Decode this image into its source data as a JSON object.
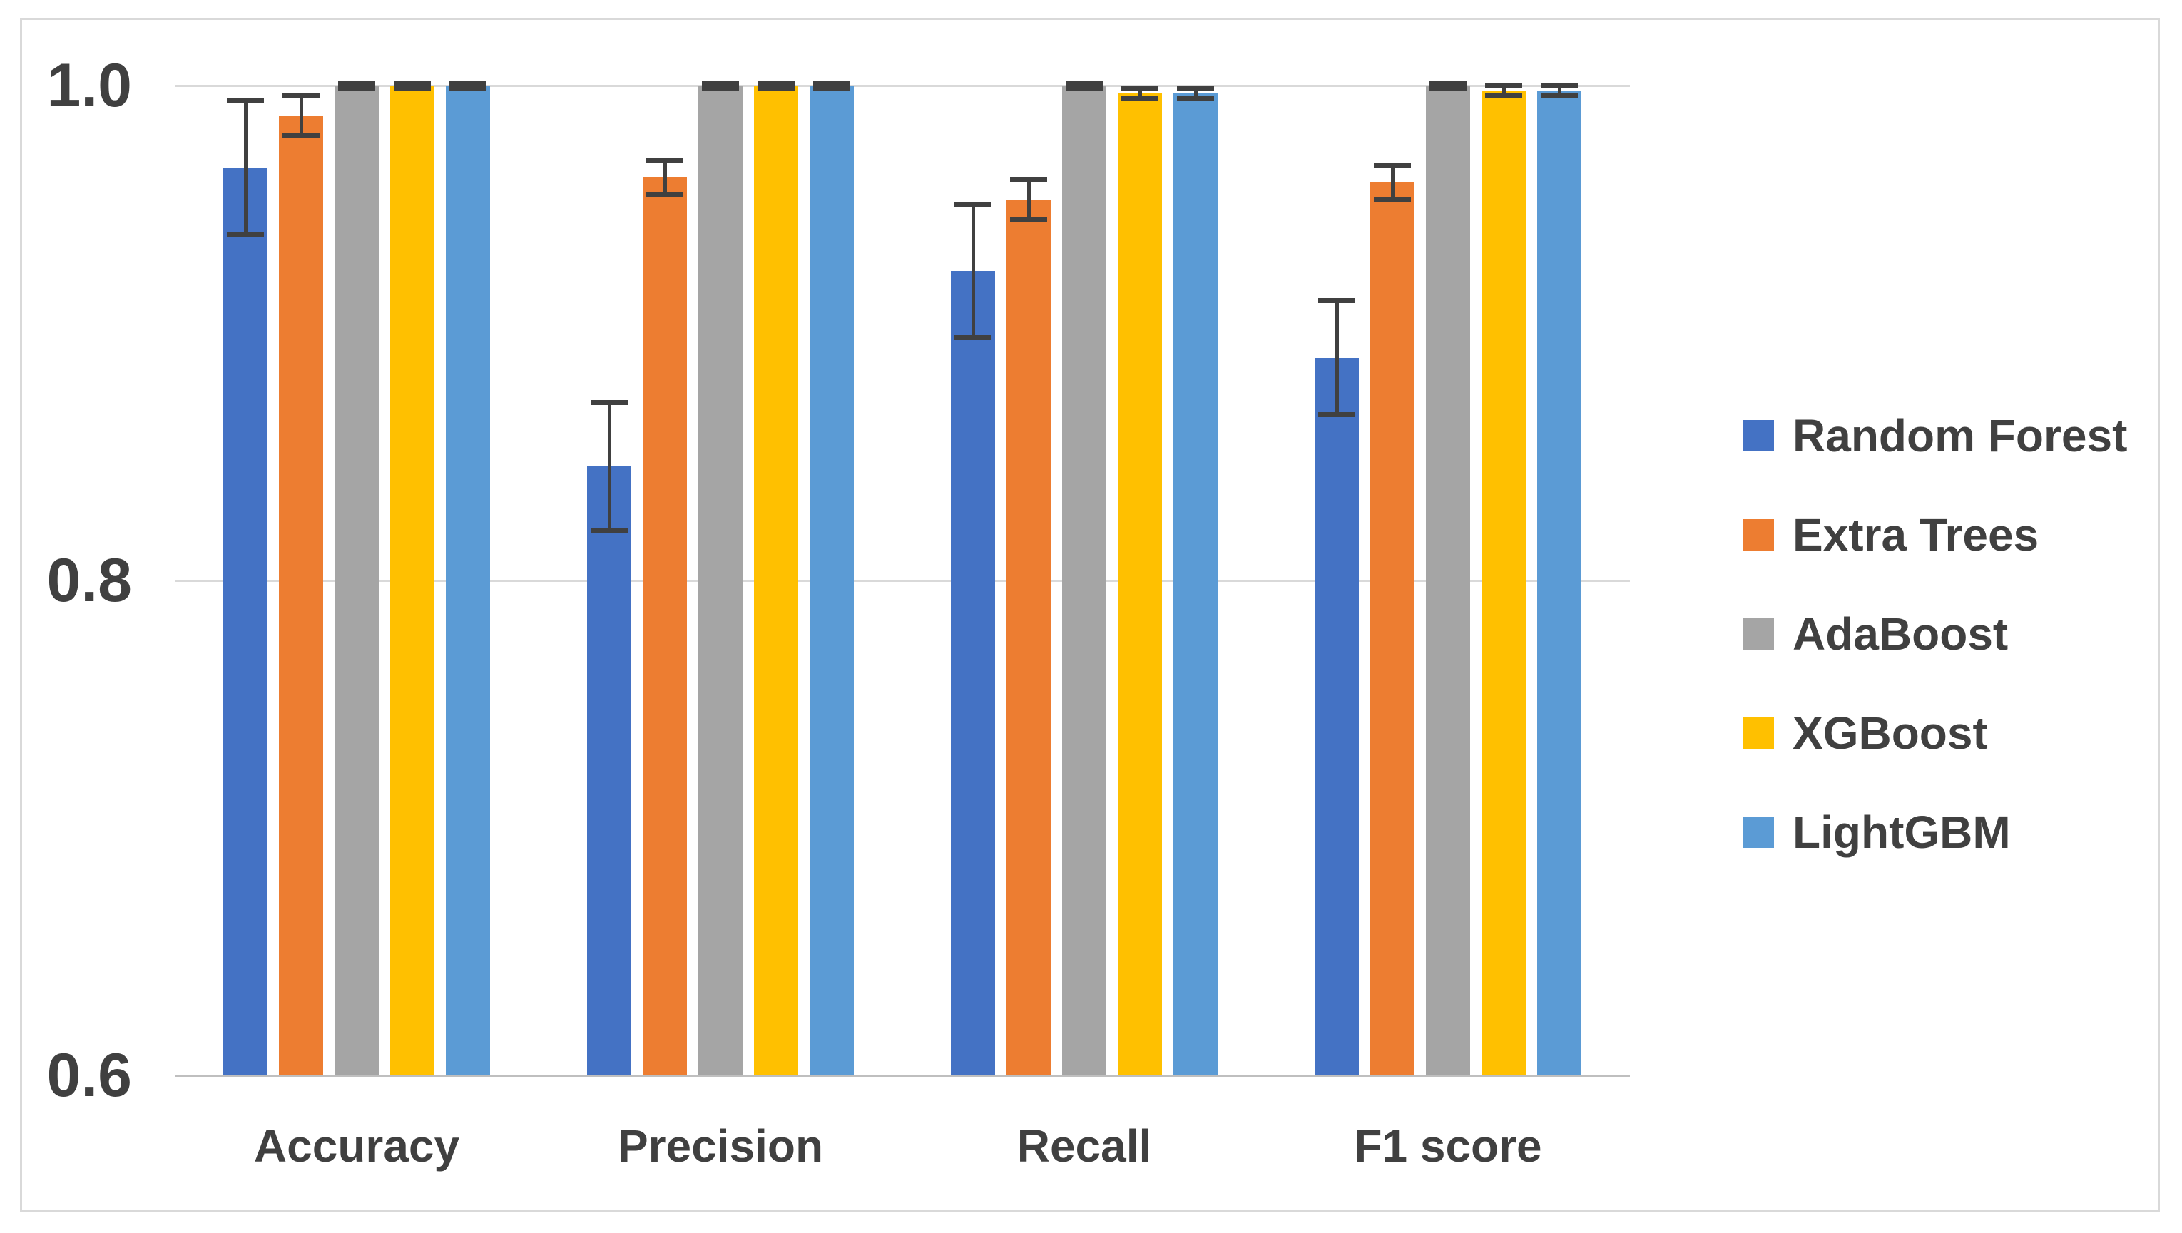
{
  "figure": {
    "background": "#FFFFFF",
    "border_color": "#D9D9D9"
  },
  "colors": {
    "text": "#404040",
    "gridline": "#D9D9D9",
    "axis_line": "#BFBFBF",
    "error_bar": "#404040"
  },
  "chart_data": {
    "type": "bar",
    "title": "",
    "xlabel": "",
    "ylabel": "",
    "categories": [
      "Accuracy",
      "Precision",
      "Recall",
      "F1 score"
    ],
    "series": [
      {
        "name": "Random Forest",
        "color": "#4472C4",
        "values": [
          0.967,
          0.846,
          0.925,
          0.89
        ],
        "errors": [
          0.027,
          0.026,
          0.027,
          0.023
        ]
      },
      {
        "name": "Extra Trees",
        "color": "#ED7D31",
        "values": [
          0.988,
          0.963,
          0.954,
          0.961
        ],
        "errors": [
          0.008,
          0.007,
          0.008,
          0.007
        ]
      },
      {
        "name": "AdaBoost",
        "color": "#A5A5A5",
        "values": [
          1.0,
          1.0,
          1.0,
          1.0
        ],
        "errors": [
          0.001,
          0.001,
          0.001,
          0.001
        ]
      },
      {
        "name": "XGBoost",
        "color": "#FFC000",
        "values": [
          1.0,
          1.0,
          0.997,
          0.998
        ],
        "errors": [
          0.001,
          0.001,
          0.002,
          0.002
        ]
      },
      {
        "name": "LightGBM",
        "color": "#5B9BD5",
        "values": [
          1.0,
          1.0,
          0.997,
          0.998
        ],
        "errors": [
          0.001,
          0.001,
          0.002,
          0.002
        ]
      }
    ],
    "ylim": [
      0.6,
      1.0
    ],
    "yticks": [
      {
        "value": 1.0,
        "label": "1.0"
      },
      {
        "value": 0.8,
        "label": "0.8"
      },
      {
        "value": 0.6,
        "label": "0.6"
      }
    ],
    "grid": true,
    "error_bars": true,
    "legend_position": "right"
  }
}
